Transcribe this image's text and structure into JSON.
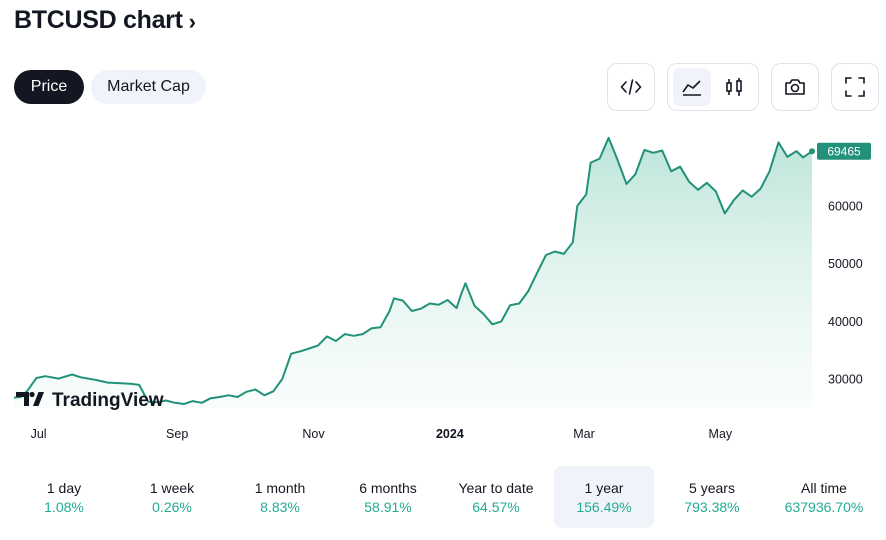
{
  "header": {
    "title": "BTCUSD chart",
    "chevron": "›"
  },
  "tabs": [
    {
      "label": "Price",
      "active": true
    },
    {
      "label": "Market Cap",
      "active": false
    }
  ],
  "toolbar": {
    "icons": [
      "embed-code-icon",
      "area-chart-icon",
      "candles-chart-icon",
      "camera-icon",
      "fullscreen-icon"
    ]
  },
  "colors": {
    "line": "#22917a",
    "fill_top": "#b8e3d6",
    "label_bg": "#22917a",
    "positive": "#22ab94"
  },
  "watermark": {
    "text": "TradingView"
  },
  "chart_data": {
    "type": "area",
    "title": "BTCUSD chart",
    "xlabel": "",
    "ylabel": "",
    "ylim": [
      25000,
      73500
    ],
    "x_range_days": [
      0,
      357
    ],
    "grid": false,
    "y_axis_position": "right",
    "yticks": [
      {
        "value": 30000,
        "label": "30000"
      },
      {
        "value": 40000,
        "label": "40000"
      },
      {
        "value": 50000,
        "label": "50000"
      },
      {
        "value": 60000,
        "label": "60000"
      }
    ],
    "xticks": [
      {
        "day": 11,
        "label": "Jul",
        "bold": false
      },
      {
        "day": 73,
        "label": "Sep",
        "bold": false
      },
      {
        "day": 134,
        "label": "Nov",
        "bold": false
      },
      {
        "day": 195,
        "label": "2024",
        "bold": true
      },
      {
        "day": 255,
        "label": "Mar",
        "bold": false
      },
      {
        "day": 316,
        "label": "May",
        "bold": false
      }
    ],
    "last_value": 69465,
    "last_label": "69465",
    "series": [
      {
        "name": "BTCUSD",
        "points": [
          [
            0,
            26800
          ],
          [
            3,
            26900
          ],
          [
            6,
            28000
          ],
          [
            10,
            30200
          ],
          [
            14,
            30500
          ],
          [
            20,
            30100
          ],
          [
            26,
            30800
          ],
          [
            30,
            30300
          ],
          [
            36,
            29900
          ],
          [
            42,
            29400
          ],
          [
            48,
            29300
          ],
          [
            52,
            29200
          ],
          [
            56,
            29000
          ],
          [
            60,
            26100
          ],
          [
            64,
            26000
          ],
          [
            68,
            26300
          ],
          [
            72,
            25900
          ],
          [
            76,
            25700
          ],
          [
            80,
            26200
          ],
          [
            84,
            25900
          ],
          [
            88,
            26700
          ],
          [
            92,
            26900
          ],
          [
            96,
            27200
          ],
          [
            100,
            26900
          ],
          [
            104,
            27800
          ],
          [
            108,
            28200
          ],
          [
            112,
            27200
          ],
          [
            116,
            27900
          ],
          [
            120,
            30000
          ],
          [
            124,
            34400
          ],
          [
            128,
            34800
          ],
          [
            132,
            35300
          ],
          [
            136,
            35800
          ],
          [
            140,
            37400
          ],
          [
            144,
            36600
          ],
          [
            148,
            37800
          ],
          [
            152,
            37500
          ],
          [
            156,
            37800
          ],
          [
            160,
            38800
          ],
          [
            164,
            39000
          ],
          [
            168,
            41800
          ],
          [
            170,
            44000
          ],
          [
            174,
            43600
          ],
          [
            178,
            41800
          ],
          [
            182,
            42200
          ],
          [
            186,
            43100
          ],
          [
            190,
            42900
          ],
          [
            194,
            43700
          ],
          [
            198,
            42300
          ],
          [
            200,
            44700
          ],
          [
            202,
            46600
          ],
          [
            206,
            42700
          ],
          [
            210,
            41300
          ],
          [
            214,
            39500
          ],
          [
            218,
            40000
          ],
          [
            222,
            42800
          ],
          [
            226,
            43100
          ],
          [
            230,
            45200
          ],
          [
            234,
            48400
          ],
          [
            238,
            51500
          ],
          [
            242,
            52100
          ],
          [
            246,
            51700
          ],
          [
            250,
            53700
          ],
          [
            252,
            60000
          ],
          [
            256,
            62000
          ],
          [
            258,
            67500
          ],
          [
            262,
            68200
          ],
          [
            266,
            71800
          ],
          [
            270,
            68000
          ],
          [
            274,
            63800
          ],
          [
            278,
            65500
          ],
          [
            282,
            69700
          ],
          [
            286,
            69200
          ],
          [
            290,
            69600
          ],
          [
            294,
            66000
          ],
          [
            298,
            66800
          ],
          [
            302,
            64200
          ],
          [
            306,
            62800
          ],
          [
            310,
            64000
          ],
          [
            314,
            62500
          ],
          [
            318,
            58700
          ],
          [
            322,
            61000
          ],
          [
            326,
            62700
          ],
          [
            330,
            61600
          ],
          [
            334,
            63000
          ],
          [
            338,
            66000
          ],
          [
            342,
            71000
          ],
          [
            346,
            68500
          ],
          [
            350,
            69500
          ],
          [
            353,
            68400
          ],
          [
            357,
            69465
          ]
        ]
      }
    ]
  },
  "periods": [
    {
      "label": "1 day",
      "change": "1.08%",
      "active": false
    },
    {
      "label": "1 week",
      "change": "0.26%",
      "active": false
    },
    {
      "label": "1 month",
      "change": "8.83%",
      "active": false
    },
    {
      "label": "6 months",
      "change": "58.91%",
      "active": false
    },
    {
      "label": "Year to date",
      "change": "64.57%",
      "active": false
    },
    {
      "label": "1 year",
      "change": "156.49%",
      "active": true
    },
    {
      "label": "5 years",
      "change": "793.38%",
      "active": false
    },
    {
      "label": "All time",
      "change": "637936.70%",
      "active": false
    }
  ]
}
